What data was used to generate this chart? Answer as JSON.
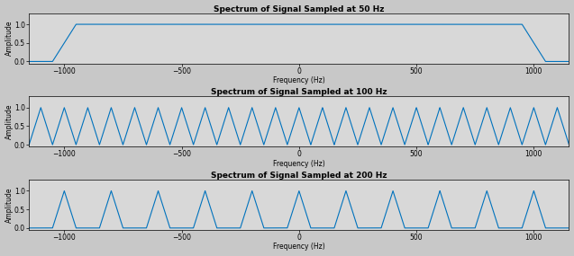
{
  "xlim": [
    -1150,
    1150
  ],
  "ylim": [
    -0.05,
    1.3
  ],
  "yticks": [
    0,
    0.5,
    1
  ],
  "xticks": [
    -1000,
    -500,
    0,
    500,
    1000
  ],
  "xlabel": "Frequency (Hz)",
  "ylabel": "Amplitude",
  "titles": [
    "Spectrum of Signal Sampled at 50 Hz",
    "Spectrum of Signal Sampled at 100 Hz",
    "Spectrum of Signal Sampled at 200 Hz"
  ],
  "line_color": "#0072BD",
  "bg_color": "#c8c8c8",
  "plot_bg_color": "#d8d8d8",
  "sampling_rates": [
    50,
    100,
    200
  ],
  "freq_range": 1150,
  "line_width": 0.8,
  "signal_bw": 50,
  "title_fontsize": 6.5,
  "label_fontsize": 5.5,
  "tick_fontsize": 5.5
}
